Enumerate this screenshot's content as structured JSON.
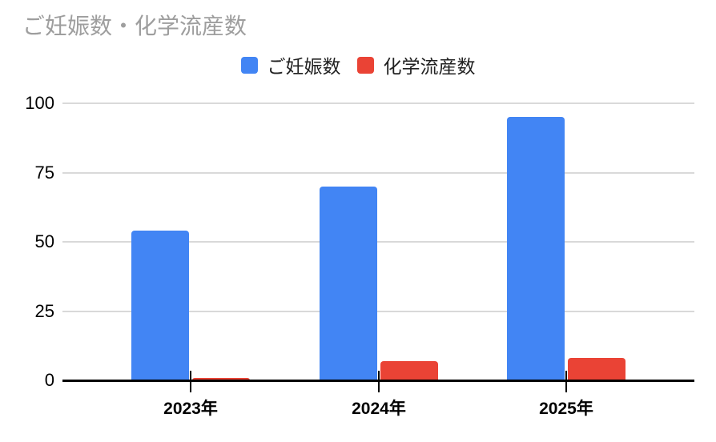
{
  "chart_data": {
    "type": "bar",
    "title": "ご妊娠数・化学流産数",
    "categories": [
      "2023年",
      "2024年",
      "2025年"
    ],
    "series": [
      {
        "name": "ご妊娠数",
        "color": "#4285F4",
        "values": [
          54,
          70,
          95
        ]
      },
      {
        "name": "化学流産数",
        "color": "#EA4335",
        "values": [
          1,
          7,
          8
        ]
      }
    ],
    "ylim": [
      0,
      100
    ],
    "yticks": [
      0,
      25,
      50,
      75,
      100
    ],
    "grid": true,
    "legend_position": "top",
    "xlabel": "",
    "ylabel": "",
    "colors": {
      "title": "#9e9e9e",
      "gridline": "#d9d9d9",
      "axis": "#000000",
      "tick_label": "#000000",
      "legend_text": "#212121",
      "background": "#ffffff"
    }
  }
}
